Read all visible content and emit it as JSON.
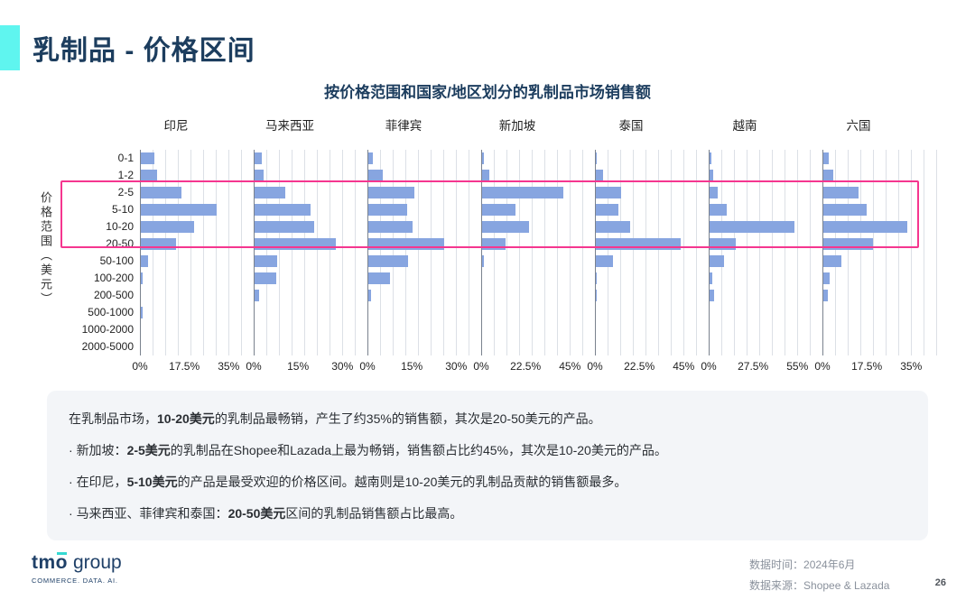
{
  "page": {
    "title": "乳制品 - 价格区间"
  },
  "colors": {
    "accent_cyan": "#5FF5EF",
    "title_navy": "#1C3D5E",
    "bar_blue": "#87A5E0",
    "highlight_pink": "#F5368F",
    "gridline": "#DCE0E6",
    "insight_bg": "#F3F5F8"
  },
  "chart_data": {
    "type": "bar",
    "orientation": "horizontal",
    "title": "按价格范围和国家/地区划分的乳制品市场销售额",
    "ylabel": "价格范围（美元）",
    "unit": "%",
    "grid": true,
    "categories": [
      "0-1",
      "1-2",
      "2-5",
      "5-10",
      "10-20",
      "20-50",
      "50-100",
      "100-200",
      "200-500",
      "500-1000",
      "1000-2000",
      "2000-5000"
    ],
    "highlighted_categories": [
      "2-5",
      "5-10",
      "10-20",
      "20-50"
    ],
    "panels": [
      {
        "name": "印尼",
        "ticks": [
          "0%",
          "17.5%",
          "35%"
        ],
        "axis_max": 35,
        "values": [
          5.5,
          6.5,
          16,
          30,
          21,
          14,
          3,
          0.7,
          0,
          0.8,
          0,
          0
        ]
      },
      {
        "name": "马来西亚",
        "ticks": [
          "0%",
          "15%",
          "30%"
        ],
        "axis_max": 30,
        "values": [
          2.3,
          3.2,
          10.5,
          19,
          20,
          27.5,
          7.5,
          7.3,
          1.5,
          0,
          0,
          0
        ]
      },
      {
        "name": "菲律宾",
        "ticks": [
          "0%",
          "15%",
          "30%"
        ],
        "axis_max": 30,
        "values": [
          1.5,
          4.8,
          15.5,
          13,
          15,
          25.5,
          13.5,
          7.3,
          0.8,
          0,
          0,
          0
        ]
      },
      {
        "name": "新加坡",
        "ticks": [
          "0%",
          "22.5%",
          "45%"
        ],
        "axis_max": 45,
        "values": [
          0.9,
          3.5,
          41,
          17,
          24,
          12,
          0.8,
          0,
          0,
          0,
          0,
          0
        ]
      },
      {
        "name": "泰国",
        "ticks": [
          "0%",
          "22.5%",
          "45%"
        ],
        "axis_max": 45,
        "values": [
          0.6,
          3.8,
          13,
          11.5,
          17.5,
          43,
          8.5,
          0.3,
          0.6,
          0,
          0,
          0
        ]
      },
      {
        "name": "越南",
        "ticks": [
          "0%",
          "27.5%",
          "55%"
        ],
        "axis_max": 55,
        "values": [
          1.3,
          2.4,
          5,
          10.5,
          52.5,
          16,
          9,
          1.8,
          3,
          0,
          0,
          0
        ]
      },
      {
        "name": "六国",
        "ticks": [
          "0%",
          "17.5%",
          "35%"
        ],
        "axis_max": 35,
        "values": [
          2.1,
          4,
          14,
          17,
          33,
          19.5,
          7,
          2.4,
          1.7,
          0,
          0,
          0
        ]
      }
    ]
  },
  "insights": {
    "lines": [
      {
        "bullet": false,
        "parts": [
          {
            "t": "在乳制品市场，"
          },
          {
            "t": "10-20美元",
            "b": true
          },
          {
            "t": "的乳制品最畅销，产生了约35%的销售额，其次是20-50美元的产品。"
          }
        ]
      },
      {
        "bullet": true,
        "parts": [
          {
            "t": "新加坡："
          },
          {
            "t": "2-5美元",
            "b": true
          },
          {
            "t": "的乳制品在Shopee和Lazada上最为畅销，销售额占比约45%，其次是10-20美元的产品。"
          }
        ]
      },
      {
        "bullet": true,
        "parts": [
          {
            "t": "在印尼，"
          },
          {
            "t": "5-10美元",
            "b": true
          },
          {
            "t": "的产品是最受欢迎的价格区间。越南则是10-20美元的乳制品贡献的销售额最多。"
          }
        ]
      },
      {
        "bullet": true,
        "parts": [
          {
            "t": "马来西亚、菲律宾和泰国："
          },
          {
            "t": "20-50美元",
            "b": true
          },
          {
            "t": "区间的乳制品销售额占比最高。"
          }
        ]
      }
    ]
  },
  "footer": {
    "logo": {
      "name": "tmo",
      "suffix": "group",
      "tagline": "COMMERCE. DATA. AI."
    },
    "data_time_label": "数据时间：",
    "data_time": "2024年6月",
    "data_source_label": "数据来源：",
    "data_source": "Shopee & Lazada",
    "page_number": "26"
  }
}
